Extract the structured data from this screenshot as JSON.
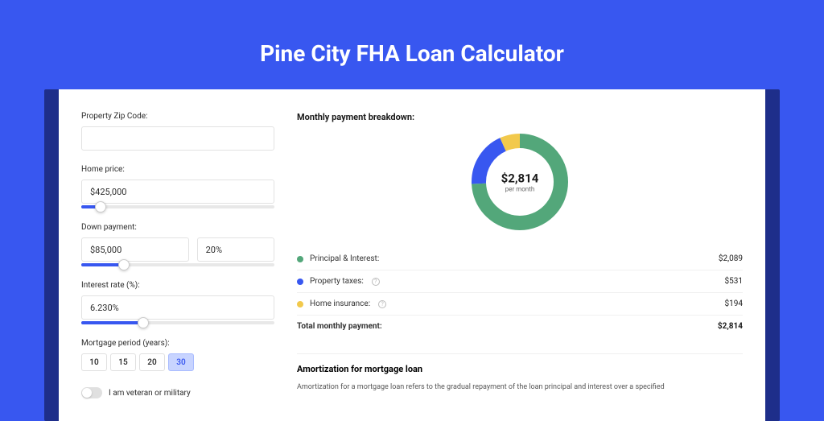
{
  "page": {
    "title": "Pine City FHA Loan Calculator",
    "background_color": "#3857f0",
    "card_holder_bg": "#1e2e8a"
  },
  "form": {
    "zip": {
      "label": "Property Zip Code:",
      "value": ""
    },
    "home_price": {
      "label": "Home price:",
      "value": "$425,000",
      "slider_pct": 10
    },
    "down_payment": {
      "label": "Down payment:",
      "amount": "$85,000",
      "pct": "20%",
      "slider_pct": 22
    },
    "interest": {
      "label": "Interest rate (%):",
      "value": "6.230%",
      "slider_pct": 32
    },
    "period": {
      "label": "Mortgage period (years):",
      "options": [
        "10",
        "15",
        "20",
        "30"
      ],
      "selected": "30"
    },
    "veteran": {
      "label": "I am veteran or military",
      "on": false
    }
  },
  "breakdown": {
    "title": "Monthly payment breakdown:",
    "donut": {
      "center_value": "$2,814",
      "center_sub": "per month",
      "stroke_width": 18,
      "segments": [
        {
          "color": "#53a77a",
          "pct": 74.2
        },
        {
          "color": "#3857f0",
          "pct": 18.9
        },
        {
          "color": "#f2c94c",
          "pct": 6.9
        }
      ]
    },
    "legend": [
      {
        "dot": "#53a77a",
        "label": "Principal & Interest:",
        "value": "$2,089",
        "info": false
      },
      {
        "dot": "#3857f0",
        "label": "Property taxes:",
        "value": "$531",
        "info": true
      },
      {
        "dot": "#f2c94c",
        "label": "Home insurance:",
        "value": "$194",
        "info": true
      }
    ],
    "total": {
      "label": "Total monthly payment:",
      "value": "$2,814"
    }
  },
  "amortization": {
    "title": "Amortization for mortgage loan",
    "text": "Amortization for a mortgage loan refers to the gradual repayment of the loan principal and interest over a specified"
  }
}
